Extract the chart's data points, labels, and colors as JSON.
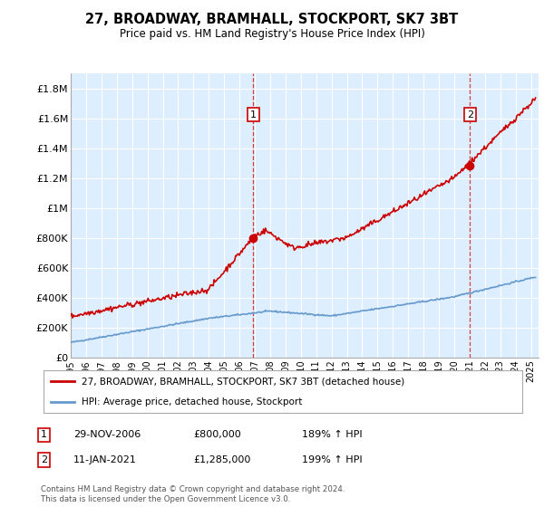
{
  "title": "27, BROADWAY, BRAMHALL, STOCKPORT, SK7 3BT",
  "subtitle": "Price paid vs. HM Land Registry's House Price Index (HPI)",
  "legend_line1": "27, BROADWAY, BRAMHALL, STOCKPORT, SK7 3BT (detached house)",
  "legend_line2": "HPI: Average price, detached house, Stockport",
  "annotation1_date": "29-NOV-2006",
  "annotation1_price": "£800,000",
  "annotation1_hpi": "189% ↑ HPI",
  "annotation2_date": "11-JAN-2021",
  "annotation2_price": "£1,285,000",
  "annotation2_hpi": "199% ↑ HPI",
  "footnote": "Contains HM Land Registry data © Crown copyright and database right 2024.\nThis data is licensed under the Open Government Licence v3.0.",
  "house_color": "#cc0000",
  "hpi_color": "#6699cc",
  "plot_bg_color": "#ddeeff",
  "ylim": [
    0,
    1900000
  ],
  "yticks": [
    0,
    200000,
    400000,
    600000,
    800000,
    1000000,
    1200000,
    1400000,
    1600000,
    1800000
  ],
  "ytick_labels": [
    "£0",
    "£200K",
    "£400K",
    "£600K",
    "£800K",
    "£1M",
    "£1.2M",
    "£1.4M",
    "£1.6M",
    "£1.8M"
  ],
  "sale1_x": 2006.91,
  "sale1_y": 800000,
  "sale2_x": 2021.03,
  "sale2_y": 1285000,
  "xmin": 1995,
  "xmax": 2025.5,
  "xticks": [
    1995,
    1996,
    1997,
    1998,
    1999,
    2000,
    2001,
    2002,
    2003,
    2004,
    2005,
    2006,
    2007,
    2008,
    2009,
    2010,
    2011,
    2012,
    2013,
    2014,
    2015,
    2016,
    2017,
    2018,
    2019,
    2020,
    2021,
    2022,
    2023,
    2024,
    2025
  ]
}
